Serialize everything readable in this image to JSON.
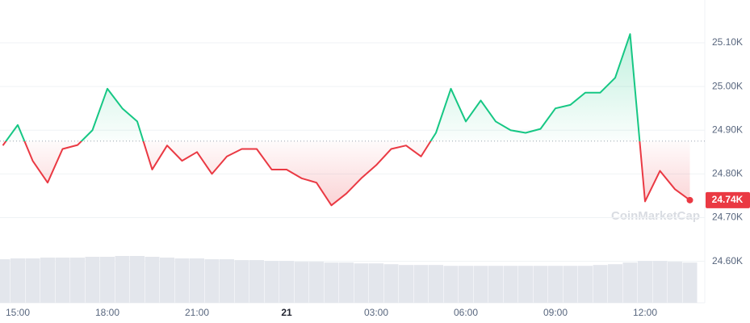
{
  "chart_data": {
    "type": "line",
    "categories": [
      null,
      "15:00",
      null,
      null,
      null,
      null,
      null,
      "18:00",
      null,
      null,
      null,
      null,
      null,
      "21:00",
      null,
      null,
      null,
      null,
      null,
      "21",
      null,
      null,
      null,
      null,
      null,
      "03:00",
      null,
      null,
      null,
      null,
      null,
      "06:00",
      null,
      null,
      null,
      null,
      null,
      "09:00",
      null,
      null,
      null,
      null,
      null,
      "12:00",
      null,
      null,
      null
    ],
    "values": [
      24.865,
      24.912,
      24.83,
      24.78,
      24.857,
      24.866,
      24.9,
      24.995,
      24.95,
      24.92,
      24.81,
      24.865,
      24.83,
      24.85,
      24.8,
      24.84,
      24.857,
      24.857,
      24.81,
      24.81,
      24.79,
      24.78,
      24.728,
      24.755,
      24.79,
      24.82,
      24.857,
      24.865,
      24.84,
      24.894,
      24.995,
      24.92,
      24.968,
      24.92,
      24.9,
      24.894,
      24.903,
      24.95,
      24.958,
      24.986,
      24.986,
      25.02,
      25.12,
      24.737,
      24.807,
      24.765,
      24.74
    ],
    "value_labels": [
      null,
      null,
      null,
      null,
      null,
      null,
      null,
      null,
      null,
      null,
      null,
      null,
      null,
      null,
      null,
      null,
      null,
      null,
      null,
      null,
      null,
      null,
      null,
      null,
      null,
      null,
      null,
      null,
      null,
      null,
      null,
      null,
      null,
      null,
      null,
      null,
      null,
      null,
      null,
      null,
      null,
      null,
      null,
      null,
      null,
      null,
      "24.74K"
    ],
    "volume": [
      53,
      54,
      54,
      55,
      55,
      55,
      56,
      56,
      57,
      57,
      56,
      55,
      54,
      54,
      53,
      53,
      52,
      52,
      51,
      51,
      50,
      50,
      49,
      49,
      48,
      48,
      47,
      46,
      46,
      46,
      45,
      45,
      45,
      45,
      45,
      45,
      45,
      45,
      45,
      45,
      46,
      47,
      49,
      51,
      51,
      50,
      49
    ],
    "baseline": 24.875,
    "up_color": "#16c784",
    "down_color": "#ea3943",
    "volume_color": "#e3e6ec",
    "ylim": [
      24.505,
      25.198
    ],
    "yticks": [
      {
        "value": 24.6,
        "label": "24.60K"
      },
      {
        "value": 24.7,
        "label": "24.70K"
      },
      {
        "value": 24.8,
        "label": "24.80K"
      },
      {
        "value": 24.9,
        "label": "24.90K"
      },
      {
        "value": 25.0,
        "label": "25.00K"
      },
      {
        "value": 25.1,
        "label": "25.10K"
      }
    ],
    "grid": true,
    "watermark": "CoinMarketCap"
  }
}
